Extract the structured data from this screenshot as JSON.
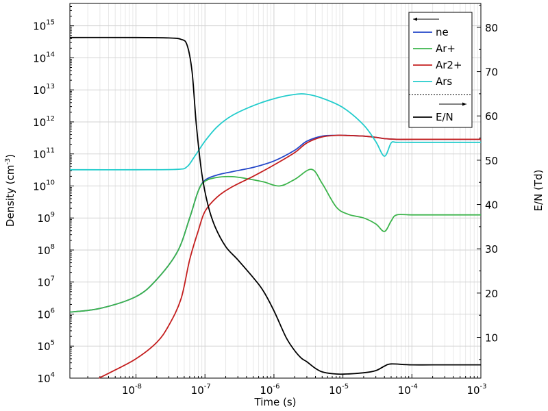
{
  "chart_data": {
    "type": "line",
    "xlabel": "Time (s)",
    "ylabel_left": "Density (cm",
    "ylabel_left_sup": "-3",
    "ylabel_left_tail": ")",
    "ylabel_right": "E/N (Td)",
    "xscale": "log",
    "yscale_left": "log",
    "xlim": [
      1.1e-09,
      0.001
    ],
    "ylim_left": [
      10000.0,
      5000000000000000.0
    ],
    "ylim_right": [
      0.8,
      85.4
    ],
    "grid": true,
    "x_ticks": [
      {
        "base": "10",
        "exp": "-8",
        "value": 1e-08
      },
      {
        "base": "10",
        "exp": "-7",
        "value": 1e-07
      },
      {
        "base": "10",
        "exp": "-6",
        "value": 1e-06
      },
      {
        "base": "10",
        "exp": "-5",
        "value": 1e-05
      },
      {
        "base": "10",
        "exp": "-4",
        "value": 0.0001
      },
      {
        "base": "10",
        "exp": "-3",
        "value": 0.001
      }
    ],
    "y_left_ticks": [
      {
        "base": "10",
        "exp": "4",
        "value": 10000.0
      },
      {
        "base": "10",
        "exp": "5",
        "value": 100000.0
      },
      {
        "base": "10",
        "exp": "6",
        "value": 1000000.0
      },
      {
        "base": "10",
        "exp": "7",
        "value": 10000000.0
      },
      {
        "base": "10",
        "exp": "8",
        "value": 100000000.0
      },
      {
        "base": "10",
        "exp": "9",
        "value": 1000000000.0
      },
      {
        "base": "10",
        "exp": "10",
        "value": 10000000000.0
      },
      {
        "base": "10",
        "exp": "11",
        "value": 100000000000.0
      },
      {
        "base": "10",
        "exp": "12",
        "value": 1000000000000.0
      },
      {
        "base": "10",
        "exp": "13",
        "value": 10000000000000.0
      },
      {
        "base": "10",
        "exp": "14",
        "value": 100000000000000.0
      },
      {
        "base": "10",
        "exp": "15",
        "value": 1000000000000000.0
      }
    ],
    "y_right_ticks": [
      "10",
      "20",
      "30",
      "40",
      "50",
      "60",
      "70",
      "80"
    ],
    "legend": {
      "placement": "top-right",
      "left_arrow": "←",
      "right_arrow": "→",
      "left_entries": [
        "ne",
        "Ar+",
        "Ar2+",
        "Ars"
      ],
      "right_entries": [
        "E/N"
      ]
    },
    "series": [
      {
        "name": "ne",
        "axis": "left",
        "color": "#2346c8",
        "x": [
          1.1e-09,
          3e-09,
          1e-08,
          2e-08,
          4e-08,
          6e-08,
          8e-08,
          1e-07,
          1.5e-07,
          2.5e-07,
          5e-07,
          1e-06,
          2e-06,
          3e-06,
          5e-06,
          8e-06,
          1e-05,
          2e-05,
          3e-05,
          4e-05,
          6e-05,
          0.0001,
          0.0003,
          0.001
        ],
        "y": [
          1150000.0,
          1500000.0,
          3500000.0,
          12000000.0,
          90000000.0,
          1000000000.0,
          7000000000.0,
          15000000000.0,
          22000000000.0,
          28000000000.0,
          38000000000.0,
          60000000000.0,
          130000000000.0,
          250000000000.0,
          360000000000.0,
          380000000000.0,
          380000000000.0,
          360000000000.0,
          330000000000.0,
          300000000000.0,
          285000000000.0,
          285000000000.0,
          285000000000.0,
          285000000000.0
        ]
      },
      {
        "name": "Ar+",
        "axis": "left",
        "color": "#3cb44b",
        "x": [
          1.1e-09,
          3e-09,
          1e-08,
          2e-08,
          4e-08,
          6e-08,
          8e-08,
          1e-07,
          1.5e-07,
          2.5e-07,
          4e-07,
          7e-07,
          1.2e-06,
          2e-06,
          3.5e-06,
          5e-06,
          8e-06,
          1.2e-05,
          2e-05,
          3e-05,
          4e-05,
          5e-05,
          6e-05,
          0.0001,
          0.0003,
          0.001
        ],
        "y": [
          1150000.0,
          1500000.0,
          3500000.0,
          12000000.0,
          90000000.0,
          1000000000.0,
          7000000000.0,
          14000000000.0,
          18500000000.0,
          19500000000.0,
          17000000000.0,
          13500000000.0,
          10000000000.0,
          16000000000.0,
          33000000000.0,
          12000000000.0,
          2200000000.0,
          1300000000.0,
          1000000000.0,
          650000000.0,
          380000000.0,
          800000000.0,
          1250000000.0,
          1250000000.0,
          1250000000.0,
          1250000000.0
        ]
      },
      {
        "name": "Ar2+",
        "axis": "left",
        "color": "#c41e1e",
        "x": [
          2.9e-09,
          5e-09,
          1e-08,
          2e-08,
          3e-08,
          4.5e-08,
          6e-08,
          8e-08,
          1e-07,
          1.5e-07,
          2.5e-07,
          5e-07,
          1e-06,
          2e-06,
          3e-06,
          5e-06,
          8e-06,
          1e-05,
          2e-05,
          3e-05,
          4e-05,
          6e-05,
          0.0001,
          0.0003,
          0.001
        ],
        "y": [
          10000.0,
          18000.0,
          40000.0,
          130000.0,
          450000.0,
          3000000.0,
          50000000.0,
          400000000.0,
          1600000000.0,
          4500000000.0,
          9500000000.0,
          20000000000.0,
          45000000000.0,
          110000000000.0,
          220000000000.0,
          340000000000.0,
          380000000000.0,
          380000000000.0,
          360000000000.0,
          330000000000.0,
          300000000000.0,
          285000000000.0,
          285000000000.0,
          285000000000.0,
          285000000000.0
        ]
      },
      {
        "name": "Ars",
        "axis": "left",
        "color": "#22cccc",
        "x": [
          1.1e-09,
          1e-08,
          4e-08,
          5.5e-08,
          7e-08,
          1e-07,
          1.5e-07,
          2.5e-07,
          5e-07,
          1e-06,
          2e-06,
          3e-06,
          5e-06,
          1e-05,
          2e-05,
          3e-05,
          4e-05,
          5e-05,
          6e-05,
          0.0001,
          0.0003,
          0.001
        ],
        "y": [
          32000000000.0,
          32000000000.0,
          33000000000.0,
          40000000000.0,
          80000000000.0,
          250000000000.0,
          700000000000.0,
          1600000000000.0,
          3200000000000.0,
          5300000000000.0,
          7200000000000.0,
          7300000000000.0,
          5500000000000.0,
          2800000000000.0,
          800000000000.0,
          240000000000.0,
          85000000000.0,
          220000000000.0,
          230000000000.0,
          230000000000.0,
          230000000000.0,
          230000000000.0
        ]
      },
      {
        "name": "E/N",
        "axis": "right",
        "color": "#000000",
        "x": [
          1.1e-09,
          1e-08,
          3e-08,
          4.5e-08,
          5.5e-08,
          6.5e-08,
          7.5e-08,
          9e-08,
          1.1e-07,
          1.4e-07,
          2e-07,
          3e-07,
          5e-07,
          7e-07,
          1e-06,
          1.5e-06,
          2e-06,
          2.5e-06,
          3e-06,
          4e-06,
          5e-06,
          7e-06,
          1e-05,
          2e-05,
          3e-05,
          4e-05,
          5e-05,
          0.0001,
          0.0003,
          0.001
        ],
        "y": [
          77.7,
          77.7,
          77.6,
          77.3,
          76,
          70,
          58,
          47,
          40,
          35,
          30.5,
          27.5,
          23.5,
          20.5,
          16,
          10,
          7,
          5.3,
          4.5,
          3.0,
          2.2,
          1.8,
          1.7,
          2.0,
          2.5,
          3.5,
          4.0,
          3.8,
          3.8,
          3.8
        ]
      }
    ]
  }
}
